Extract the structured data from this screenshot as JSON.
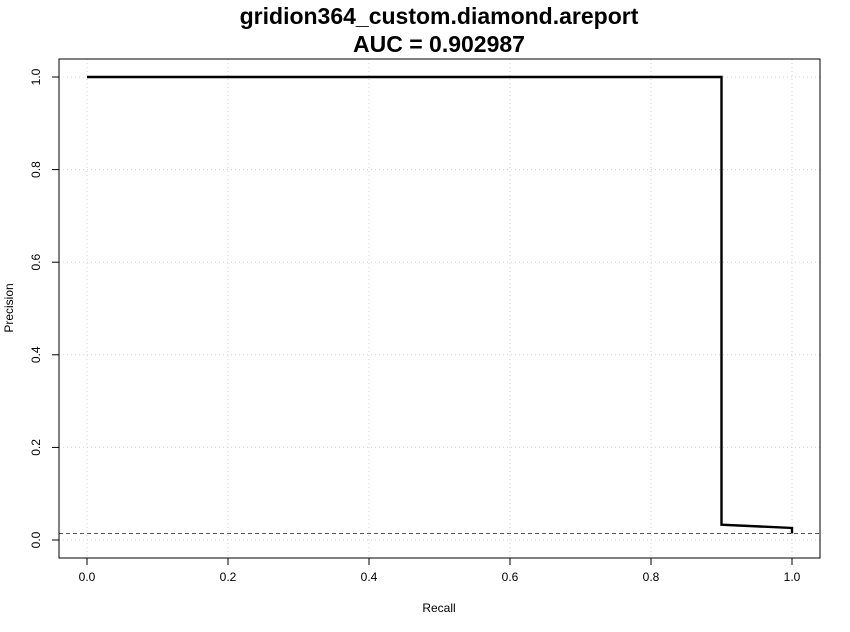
{
  "chart_data": {
    "type": "line",
    "title": "gridion364_custom.diamond.areport",
    "subtitle": "AUC = 0.902987",
    "xlabel": "Recall",
    "ylabel": "Precision",
    "xlim": [
      0.0,
      1.0
    ],
    "ylim": [
      0.0,
      1.0
    ],
    "xticks": [
      "0.0",
      "0.2",
      "0.4",
      "0.6",
      "0.8",
      "1.0"
    ],
    "yticks": [
      "0.0",
      "0.2",
      "0.4",
      "0.6",
      "0.8",
      "1.0"
    ],
    "grid": true,
    "series": [
      {
        "style": "solid",
        "color": "#000000",
        "x": [
          0.0,
          0.9,
          0.9,
          1.0,
          1.0
        ],
        "y": [
          1.0,
          1.0,
          0.033,
          0.026,
          0.014
        ]
      }
    ],
    "baseline": {
      "style": "dashed",
      "color": "#555555",
      "y": 0.014
    }
  }
}
